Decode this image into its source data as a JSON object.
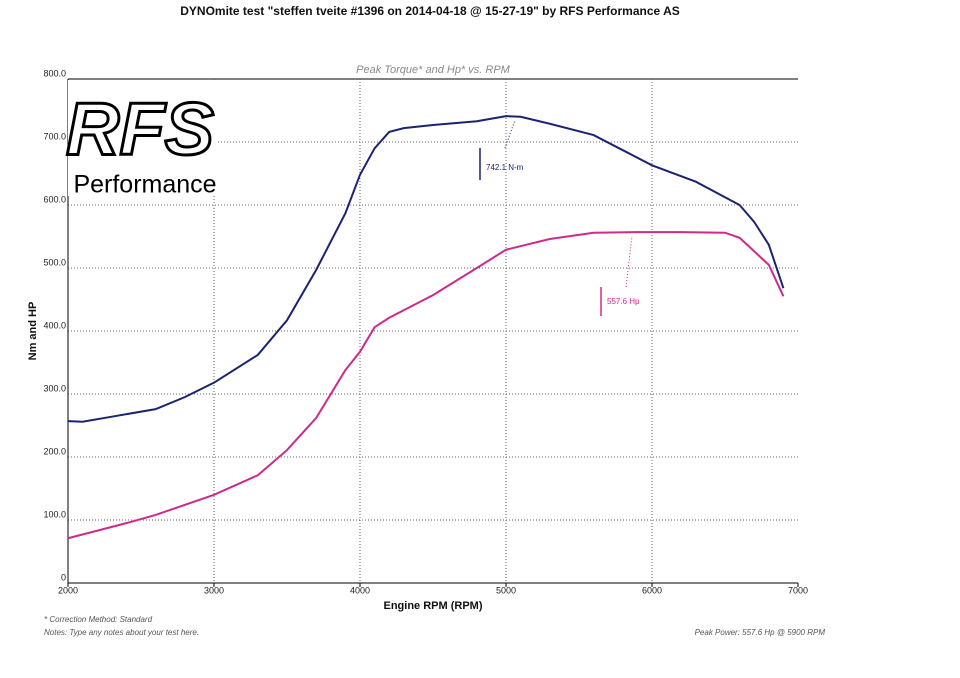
{
  "chart_data": {
    "type": "line",
    "title": "DYNOmite test \"steffen tveite #1396 on 2014-04-18 @ 15-27-19\" by RFS Performance AS",
    "subtitle": "Peak Torque* and Hp* vs. RPM",
    "x_label": "Engine RPM (RPM)",
    "y_label": "Nm and HP",
    "logo": {
      "top": "RFS",
      "bottom": "Performance"
    },
    "xlim": [
      2000,
      7000
    ],
    "xticks": [
      2000,
      3000,
      4000,
      5000,
      6000,
      7000
    ],
    "ylim": [
      0,
      800
    ],
    "yticks": [
      0,
      {
        "value": 100,
        "label": "100.0"
      },
      {
        "value": 200,
        "label": "200.0"
      },
      {
        "value": 300,
        "label": "300.0"
      },
      {
        "value": 400,
        "label": "400.0"
      },
      {
        "value": 500,
        "label": "500.0"
      },
      {
        "value": 600,
        "label": "600.0"
      },
      {
        "value": 700,
        "label": "700.0"
      },
      {
        "value": 800,
        "label": "800.0"
      }
    ],
    "grid": true,
    "series": [
      {
        "color": "#1c2370",
        "x": [
          2000,
          2100,
          2300,
          2600,
          2800,
          3000,
          3300,
          3500,
          3700,
          3900,
          4000,
          4100,
          4200,
          4300,
          4500,
          4800,
          5000,
          5100,
          5300,
          5600,
          5800,
          6000,
          6300,
          6600,
          6700,
          6800,
          6900
        ],
        "values": [
          257,
          256,
          264,
          276,
          295,
          318,
          362,
          417,
          497,
          587,
          648,
          690,
          716,
          722,
          727,
          733,
          741,
          740,
          729,
          711,
          687,
          663,
          637,
          600,
          573,
          537,
          468
        ]
      },
      {
        "color": "#cc2a8c",
        "x": [
          2000,
          2400,
          2600,
          3000,
          3300,
          3500,
          3700,
          3900,
          4000,
          4100,
          4200,
          4500,
          4800,
          5000,
          5300,
          5600,
          5900,
          6200,
          6500,
          6600,
          6800,
          6900
        ],
        "values": [
          71,
          95,
          108,
          140,
          171,
          211,
          262,
          338,
          367,
          406,
          421,
          457,
          500,
          529,
          546,
          556,
          557,
          557,
          556,
          548,
          505,
          455
        ]
      }
    ],
    "annotations": [
      {
        "text": "742.1 N-m"
      },
      {
        "text": "557.6 Hp"
      }
    ],
    "footer": {
      "correction": "* Correction Method: Standard",
      "notes": "Notes: Type any notes about your test here.",
      "peak": "Peak Power: 557.6 Hp @ 5900 RPM"
    }
  }
}
